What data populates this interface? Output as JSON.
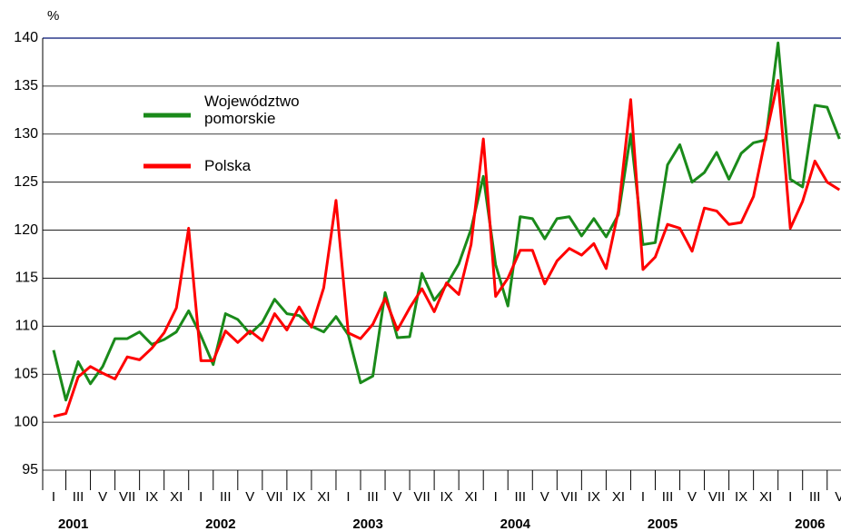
{
  "chart_data": {
    "type": "line",
    "y_label": "%",
    "categories": [
      "I",
      null,
      "III",
      null,
      "V",
      null,
      "VII",
      null,
      "IX",
      null,
      "XI",
      null,
      "I",
      null,
      "III",
      null,
      "V",
      null,
      "VII",
      null,
      "IX",
      null,
      "XI",
      null,
      "I",
      null,
      "III",
      null,
      "V",
      null,
      "VII",
      null,
      "IX",
      null,
      "XI",
      null,
      "I",
      null,
      "III",
      null,
      "V",
      null,
      "VII",
      null,
      "IX",
      null,
      "XI",
      null,
      "I",
      null,
      "III",
      null,
      "V",
      null,
      "VII",
      null,
      "IX",
      null,
      "XI",
      null,
      "I",
      null,
      "III",
      null,
      "V"
    ],
    "years": [
      "2001",
      "2002",
      "2003",
      "2004",
      "2005",
      "2006"
    ],
    "series": [
      {
        "name": "Województwo pomorskie",
        "color": "#1a8a1a",
        "values": [
          107.5,
          102.3,
          106.3,
          104.0,
          105.8,
          108.7,
          108.7,
          109.4,
          108.1,
          108.6,
          109.4,
          111.6,
          109.0,
          106.0,
          111.3,
          110.7,
          109.2,
          110.4,
          112.8,
          111.3,
          111.1,
          110.0,
          109.4,
          111.0,
          109.1,
          104.1,
          104.8,
          113.5,
          108.8,
          108.9,
          115.5,
          112.7,
          114.3,
          116.5,
          120.1,
          125.6,
          116.4,
          112.1,
          121.4,
          121.2,
          119.1,
          121.2,
          121.4,
          119.4,
          121.2,
          119.3,
          121.6,
          130.0,
          118.5,
          118.7,
          126.8,
          128.9,
          125.0,
          126.0,
          128.1,
          125.3,
          128.0,
          129.1,
          129.4,
          139.5,
          125.3,
          124.5,
          133.0,
          132.8,
          129.5
        ]
      },
      {
        "name": "Polska",
        "color": "#ff0000",
        "values": [
          100.6,
          100.9,
          104.7,
          105.8,
          105.1,
          104.5,
          106.8,
          106.5,
          107.7,
          109.3,
          111.9,
          120.2,
          106.4,
          106.4,
          109.5,
          108.3,
          109.5,
          108.5,
          111.3,
          109.6,
          112.0,
          109.9,
          114.0,
          123.1,
          109.3,
          108.7,
          110.2,
          112.9,
          109.6,
          111.9,
          113.9,
          111.5,
          114.5,
          113.3,
          118.5,
          129.5,
          113.1,
          115.0,
          117.9,
          117.9,
          114.4,
          116.8,
          118.1,
          117.4,
          118.6,
          116.0,
          122.0,
          133.6,
          115.9,
          117.2,
          120.6,
          120.2,
          117.8,
          122.3,
          122.0,
          120.6,
          120.8,
          123.5,
          129.7,
          135.6,
          120.2,
          123.0,
          127.2,
          125.0,
          124.2
        ]
      }
    ],
    "ylim": [
      95,
      140
    ],
    "yticks": [
      95,
      100,
      105,
      110,
      115,
      120,
      125,
      130,
      135,
      140
    ],
    "grid": true
  }
}
